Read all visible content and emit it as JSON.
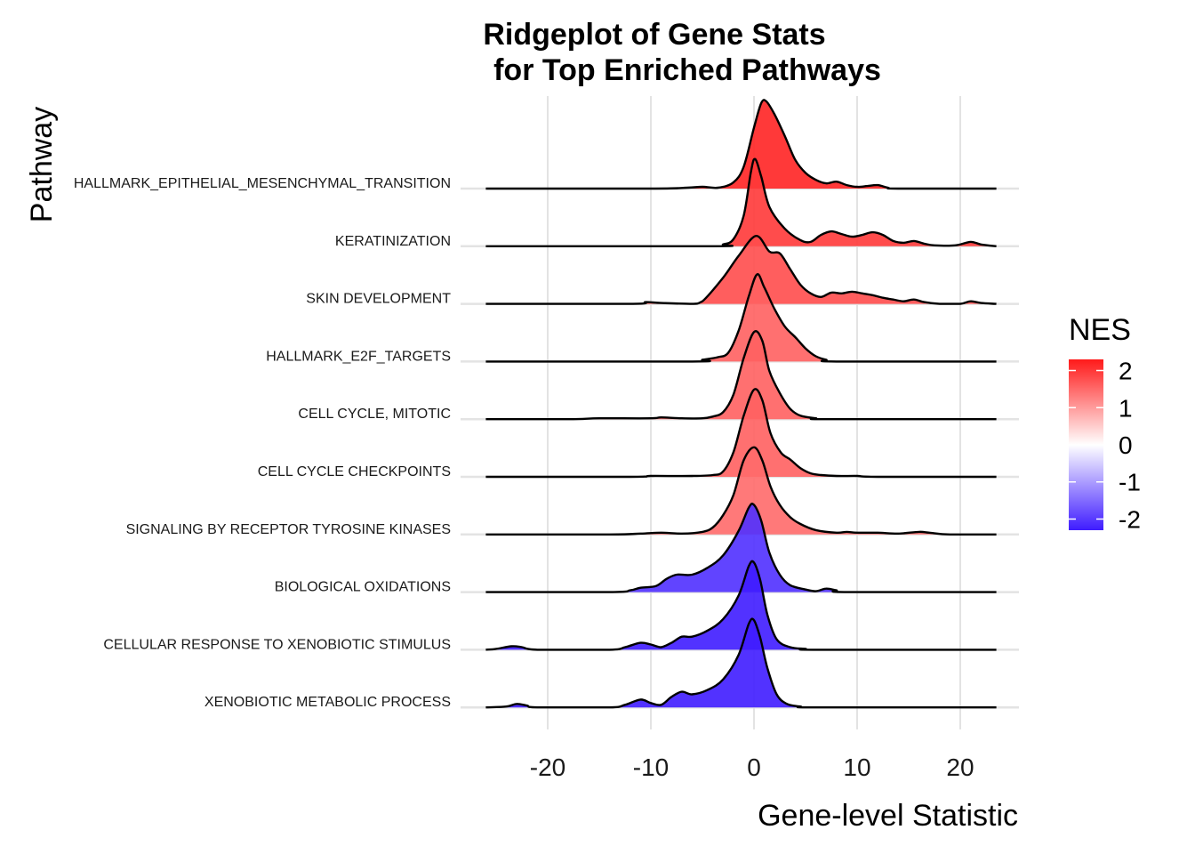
{
  "chart_data": {
    "type": "ridgeline",
    "title_line1": "Ridgeplot of Gene Stats",
    "title_line2": "for Top Enriched Pathways",
    "xlabel": "Gene-level Statistic",
    "ylabel": "Pathway",
    "xlim": [
      -26,
      23.5
    ],
    "xticks": [
      -20,
      -10,
      0,
      10,
      20
    ],
    "xtick_labels": [
      "-20",
      "-10",
      "0",
      "10",
      "20"
    ],
    "grid": true,
    "legend": {
      "title": "NES",
      "position": "right",
      "range": [
        -2.3,
        2.3
      ],
      "ticks": [
        2,
        1,
        0,
        -1,
        -2
      ],
      "tick_labels": [
        "2",
        "1",
        "0",
        "-1",
        "-2"
      ],
      "low_color": "#3f1cff",
      "mid_color": "#ffffff",
      "high_color": "#ff1a1a"
    },
    "series": [
      {
        "name": "HALLMARK_EPITHELIAL_MESENCHYMAL_TRANSITION",
        "nes": 2.2,
        "density": [
          [
            -26,
            0
          ],
          [
            -10,
            0
          ],
          [
            -6.5,
            0.01
          ],
          [
            -5,
            0.02
          ],
          [
            -3.5,
            0.01
          ],
          [
            -2,
            0.07
          ],
          [
            -1,
            0.25
          ],
          [
            0,
            0.7
          ],
          [
            0.7,
            0.98
          ],
          [
            1.2,
            1.0
          ],
          [
            2,
            0.85
          ],
          [
            3,
            0.6
          ],
          [
            4,
            0.33
          ],
          [
            5,
            0.18
          ],
          [
            6,
            0.1
          ],
          [
            7,
            0.06
          ],
          [
            8,
            0.08
          ],
          [
            9,
            0.04
          ],
          [
            10,
            0.02
          ],
          [
            11,
            0.03
          ],
          [
            12,
            0.04
          ],
          [
            13,
            0.01
          ],
          [
            14,
            0
          ],
          [
            23.5,
            0
          ]
        ]
      },
      {
        "name": "KERATINIZATION",
        "nes": 2.0,
        "density": [
          [
            -26,
            0
          ],
          [
            -4,
            0
          ],
          [
            -3,
            0.02
          ],
          [
            -2,
            0.08
          ],
          [
            -1,
            0.35
          ],
          [
            -0.3,
            0.85
          ],
          [
            0.1,
            1.0
          ],
          [
            0.7,
            0.8
          ],
          [
            1.5,
            0.45
          ],
          [
            3,
            0.2
          ],
          [
            4.5,
            0.07
          ],
          [
            5.5,
            0.05
          ],
          [
            6.5,
            0.13
          ],
          [
            7.5,
            0.17
          ],
          [
            8.5,
            0.14
          ],
          [
            9.5,
            0.11
          ],
          [
            10.5,
            0.13
          ],
          [
            11.5,
            0.16
          ],
          [
            12.5,
            0.13
          ],
          [
            13.5,
            0.06
          ],
          [
            14.5,
            0.04
          ],
          [
            15.5,
            0.06
          ],
          [
            16.5,
            0.03
          ],
          [
            17.5,
            0.01
          ],
          [
            19.5,
            0.01
          ],
          [
            21,
            0.05
          ],
          [
            22,
            0.02
          ],
          [
            23.5,
            0
          ]
        ]
      },
      {
        "name": "SKIN DEVELOPMENT",
        "nes": 1.8,
        "density": [
          [
            -26,
            0
          ],
          [
            -12,
            0
          ],
          [
            -10.5,
            0.02
          ],
          [
            -9,
            0.01
          ],
          [
            -6,
            0
          ],
          [
            -5,
            0.03
          ],
          [
            -3,
            0.3
          ],
          [
            -1.5,
            0.55
          ],
          [
            0.2,
            0.78
          ],
          [
            1.5,
            0.6
          ],
          [
            2.5,
            0.58
          ],
          [
            3.5,
            0.4
          ],
          [
            4.5,
            0.22
          ],
          [
            5.5,
            0.12
          ],
          [
            6.5,
            0.08
          ],
          [
            7.5,
            0.13
          ],
          [
            8.5,
            0.12
          ],
          [
            9.5,
            0.14
          ],
          [
            10.5,
            0.12
          ],
          [
            11.5,
            0.1
          ],
          [
            12.5,
            0.07
          ],
          [
            13.5,
            0.05
          ],
          [
            14.5,
            0.03
          ],
          [
            15.5,
            0.05
          ],
          [
            16.5,
            0.02
          ],
          [
            18,
            0
          ],
          [
            20,
            0
          ],
          [
            21,
            0.03
          ],
          [
            22,
            0.01
          ],
          [
            23.5,
            0
          ]
        ]
      },
      {
        "name": "HALLMARK_E2F_TARGETS",
        "nes": 1.6,
        "density": [
          [
            -26,
            0
          ],
          [
            -6,
            0
          ],
          [
            -5,
            0.02
          ],
          [
            -3.5,
            0.05
          ],
          [
            -2.5,
            0.1
          ],
          [
            -1.5,
            0.35
          ],
          [
            -0.5,
            0.75
          ],
          [
            0.3,
            1.0
          ],
          [
            1,
            0.85
          ],
          [
            2,
            0.6
          ],
          [
            3,
            0.4
          ],
          [
            4,
            0.28
          ],
          [
            5,
            0.15
          ],
          [
            6,
            0.06
          ],
          [
            7,
            0.02
          ],
          [
            8,
            0
          ],
          [
            23.5,
            0
          ]
        ]
      },
      {
        "name": "CELL CYCLE, MITOTIC",
        "nes": 1.6,
        "density": [
          [
            -26,
            0
          ],
          [
            -18,
            0
          ],
          [
            -15,
            0.01
          ],
          [
            -10,
            0.01
          ],
          [
            -9,
            0.02
          ],
          [
            -7,
            0.01
          ],
          [
            -5,
            0.01
          ],
          [
            -4,
            0.03
          ],
          [
            -3,
            0.08
          ],
          [
            -2,
            0.28
          ],
          [
            -1,
            0.7
          ],
          [
            0,
            1.0
          ],
          [
            0.8,
            0.9
          ],
          [
            1.5,
            0.55
          ],
          [
            2.5,
            0.3
          ],
          [
            3.5,
            0.12
          ],
          [
            4.5,
            0.04
          ],
          [
            6,
            0.01
          ],
          [
            7,
            0
          ],
          [
            23.5,
            0
          ]
        ]
      },
      {
        "name": "CELL CYCLE CHECKPOINTS",
        "nes": 1.6,
        "density": [
          [
            -26,
            0
          ],
          [
            -12,
            0
          ],
          [
            -10,
            0.01
          ],
          [
            -6,
            0.01
          ],
          [
            -4,
            0.02
          ],
          [
            -3,
            0.06
          ],
          [
            -2,
            0.28
          ],
          [
            -1,
            0.7
          ],
          [
            0,
            1.0
          ],
          [
            0.8,
            0.88
          ],
          [
            1.6,
            0.5
          ],
          [
            2.6,
            0.28
          ],
          [
            3.5,
            0.2
          ],
          [
            4.5,
            0.1
          ],
          [
            5.5,
            0.04
          ],
          [
            6.5,
            0.02
          ],
          [
            8,
            0.01
          ],
          [
            10,
            0.01
          ],
          [
            12,
            0
          ],
          [
            23.5,
            0
          ]
        ]
      },
      {
        "name": "SIGNALING BY RECEPTOR TYROSINE KINASES",
        "nes": 1.5,
        "density": [
          [
            -26,
            0
          ],
          [
            -14,
            0
          ],
          [
            -11,
            0.01
          ],
          [
            -9,
            0.02
          ],
          [
            -7,
            0.01
          ],
          [
            -5,
            0.03
          ],
          [
            -4,
            0.08
          ],
          [
            -3,
            0.22
          ],
          [
            -2,
            0.45
          ],
          [
            -1,
            0.85
          ],
          [
            0,
            1.0
          ],
          [
            0.8,
            0.85
          ],
          [
            1.6,
            0.55
          ],
          [
            2.5,
            0.34
          ],
          [
            3.5,
            0.2
          ],
          [
            4.5,
            0.12
          ],
          [
            6,
            0.05
          ],
          [
            8,
            0.02
          ],
          [
            9,
            0.03
          ],
          [
            10,
            0.02
          ],
          [
            12,
            0.02
          ],
          [
            14,
            0.01
          ],
          [
            16,
            0.03
          ],
          [
            17,
            0.02
          ],
          [
            19,
            0
          ],
          [
            23.5,
            0
          ]
        ]
      },
      {
        "name": "BIOLOGICAL OXIDATIONS",
        "nes": -2.1,
        "density": [
          [
            -26,
            0
          ],
          [
            -14,
            0
          ],
          [
            -12,
            0.02
          ],
          [
            -11,
            0.05
          ],
          [
            -9.5,
            0.07
          ],
          [
            -8.5,
            0.15
          ],
          [
            -7.5,
            0.2
          ],
          [
            -6,
            0.2
          ],
          [
            -4.5,
            0.28
          ],
          [
            -3,
            0.42
          ],
          [
            -1.5,
            0.7
          ],
          [
            -0.5,
            0.97
          ],
          [
            0,
            1.0
          ],
          [
            0.7,
            0.82
          ],
          [
            1.5,
            0.45
          ],
          [
            2.5,
            0.2
          ],
          [
            3.5,
            0.08
          ],
          [
            5,
            0.03
          ],
          [
            6,
            0.01
          ],
          [
            7,
            0.04
          ],
          [
            8,
            0.02
          ],
          [
            9,
            0
          ],
          [
            23.5,
            0
          ]
        ]
      },
      {
        "name": "CELLULAR RESPONSE TO XENOBIOTIC STIMULUS",
        "nes": -2.3,
        "density": [
          [
            -26,
            0
          ],
          [
            -25,
            0.01
          ],
          [
            -23.5,
            0.04
          ],
          [
            -22.5,
            0.03
          ],
          [
            -21,
            0
          ],
          [
            -14,
            0
          ],
          [
            -12.5,
            0.03
          ],
          [
            -11,
            0.08
          ],
          [
            -10,
            0.06
          ],
          [
            -9,
            0.03
          ],
          [
            -8,
            0.08
          ],
          [
            -7,
            0.15
          ],
          [
            -6,
            0.15
          ],
          [
            -4.5,
            0.22
          ],
          [
            -3,
            0.35
          ],
          [
            -1.5,
            0.62
          ],
          [
            -0.5,
            0.96
          ],
          [
            0,
            1.0
          ],
          [
            0.6,
            0.8
          ],
          [
            1.3,
            0.4
          ],
          [
            2.2,
            0.12
          ],
          [
            3.5,
            0.03
          ],
          [
            5,
            0.01
          ],
          [
            6,
            0
          ],
          [
            23.5,
            0
          ]
        ]
      },
      {
        "name": "XENOBIOTIC METABOLIC PROCESS",
        "nes": -2.3,
        "density": [
          [
            -26,
            0
          ],
          [
            -24,
            0.01
          ],
          [
            -23,
            0.04
          ],
          [
            -22,
            0.02
          ],
          [
            -21,
            0
          ],
          [
            -14,
            0
          ],
          [
            -12.5,
            0.03
          ],
          [
            -11,
            0.09
          ],
          [
            -10,
            0.05
          ],
          [
            -9,
            0.03
          ],
          [
            -8,
            0.12
          ],
          [
            -7,
            0.18
          ],
          [
            -6,
            0.15
          ],
          [
            -4.5,
            0.2
          ],
          [
            -3,
            0.32
          ],
          [
            -1.5,
            0.6
          ],
          [
            -0.5,
            0.96
          ],
          [
            0,
            1.0
          ],
          [
            0.6,
            0.8
          ],
          [
            1.3,
            0.45
          ],
          [
            2.2,
            0.15
          ],
          [
            3.2,
            0.04
          ],
          [
            4.5,
            0.01
          ],
          [
            6,
            0
          ],
          [
            23.5,
            0
          ]
        ]
      }
    ]
  }
}
